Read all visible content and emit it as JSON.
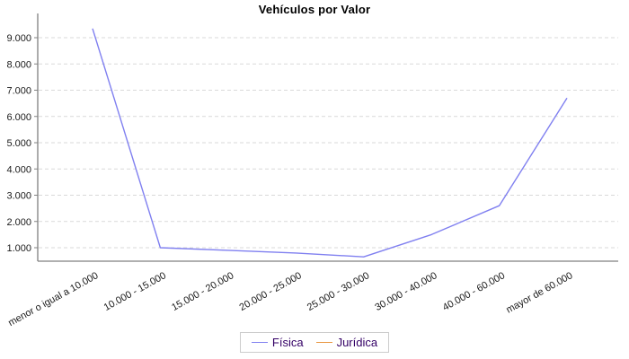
{
  "title": "Vehículos por Valor",
  "legend": {
    "items": [
      {
        "label": "Física",
        "color": "#8080f0"
      },
      {
        "label": "Jurídica",
        "color": "#e89640"
      }
    ]
  },
  "axes": {
    "y_tick_labels": [
      "1.000",
      "2.000",
      "3.000",
      "4.000",
      "5.000",
      "6.000",
      "7.000",
      "8.000",
      "9.000"
    ],
    "x_tick_labels": [
      "menor o igual a 10.000",
      "10.000 - 15.000",
      "15.000 - 20.000",
      "20.000 - 25.000",
      "25.000 - 30.000",
      "30.000 - 40.000",
      "40.000 - 60.000",
      "mayor de 60.000"
    ]
  },
  "chart_data": {
    "type": "line",
    "title": "Vehículos por Valor",
    "categories": [
      "menor o igual a 10.000",
      "10.000 - 15.000",
      "15.000 - 20.000",
      "20.000 - 25.000",
      "25.000 - 30.000",
      "30.000 - 40.000",
      "40.000 - 60.000",
      "mayor de 60.000"
    ],
    "series": [
      {
        "name": "Física",
        "color": "#8080f0",
        "values": [
          9350,
          1000,
          900,
          800,
          650,
          1500,
          2600,
          6700
        ]
      },
      {
        "name": "Jurídica",
        "color": "#e89640",
        "values": []
      }
    ],
    "yticks": [
      1000,
      2000,
      3000,
      4000,
      5000,
      6000,
      7000,
      8000,
      9000
    ],
    "ylim": [
      450,
      9550
    ],
    "xlabel": "",
    "ylabel": "",
    "grid": "horizontal-dashed",
    "legend_position": "bottom"
  },
  "style": {
    "axis_color": "#808080",
    "grid_color": "#d9d9d9",
    "tick_label_color": "#1a1a1a",
    "legend_text_color": "#330066"
  }
}
